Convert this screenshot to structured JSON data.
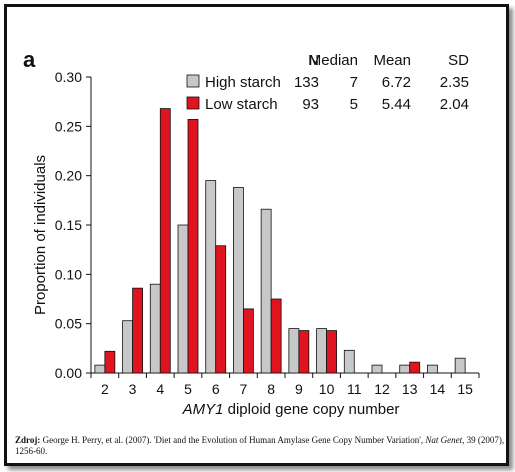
{
  "chart_data": {
    "type": "bar",
    "panel_label": "a",
    "categories": [
      "2",
      "3",
      "4",
      "5",
      "6",
      "7",
      "8",
      "9",
      "10",
      "11",
      "12",
      "13",
      "14",
      "15"
    ],
    "series": [
      {
        "name": "High starch",
        "color": "#c8c8c8",
        "values": [
          0.008,
          0.053,
          0.09,
          0.15,
          0.195,
          0.188,
          0.166,
          0.045,
          0.045,
          0.023,
          0.008,
          0.008,
          0.008,
          0.015
        ]
      },
      {
        "name": "Low starch",
        "color": "#e0141e",
        "values": [
          0.022,
          0.086,
          0.268,
          0.257,
          0.129,
          0.065,
          0.075,
          0.043,
          0.043,
          0.0,
          0.0,
          0.011,
          0.0,
          0.0
        ]
      }
    ],
    "ylabel": "Proportion of individuals",
    "xlabel_italic": "AMY1",
    "xlabel_rest": " diploid gene copy number",
    "ylim": [
      0,
      0.3
    ],
    "yticks": [
      "0.00",
      "0.05",
      "0.10",
      "0.15",
      "0.20",
      "0.25",
      "0.30"
    ],
    "grid": false,
    "legend_position": "top-right",
    "legend_table": {
      "headers": [
        "N",
        "Median",
        "Mean",
        "SD"
      ],
      "rows": [
        {
          "label": "High starch",
          "cells": [
            "133",
            "7",
            "6.72",
            "2.35"
          ]
        },
        {
          "label": "Low starch",
          "cells": [
            "93",
            "5",
            "5.44",
            "2.04"
          ]
        }
      ]
    }
  },
  "source": {
    "label": "Zdroj:",
    "text_1": " George H. Perry, et al. (2007). 'Diet and the Evolution of Human Amylase Gene Copy Number Variation', ",
    "journal": "Nat Genet",
    "text_2": ", 39 (2007), 1256-60."
  }
}
